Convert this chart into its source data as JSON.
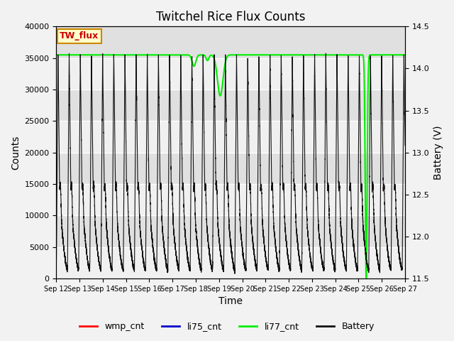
{
  "title": "Twitchel Rice Flux Counts",
  "xlabel": "Time",
  "ylabel_left": "Counts",
  "ylabel_right": "Battery (V)",
  "xlim": [
    12,
    27
  ],
  "ylim_left": [
    0,
    40000
  ],
  "ylim_right": [
    11.5,
    14.5
  ],
  "tw_flux_label": "TW_flux",
  "tw_flux_label_color": "#cc0000",
  "tw_flux_box_facecolor": "#ffffcc",
  "tw_flux_box_edgecolor": "#cc8800",
  "plot_bg_color": "#e0e0e0",
  "li77_color": "#00ee00",
  "li77_base": 35500,
  "battery_color": "#111111",
  "wmp_color": "#ff0000",
  "li75_color": "#0000cc",
  "legend_labels": [
    "wmp_cnt",
    "li75_cnt",
    "li77_cnt",
    "Battery"
  ],
  "legend_colors": [
    "#ff0000",
    "#0000cc",
    "#00ee00",
    "#111111"
  ],
  "yticks_left": [
    0,
    5000,
    10000,
    15000,
    20000,
    25000,
    30000,
    35000,
    40000
  ],
  "yticks_right": [
    11.5,
    12.0,
    12.5,
    13.0,
    13.5,
    14.0,
    14.5
  ],
  "grid_color": "#ffffff",
  "spike_period": 0.48,
  "spike_peak": 35500,
  "spike_base": 1500,
  "num_spikes": 30
}
